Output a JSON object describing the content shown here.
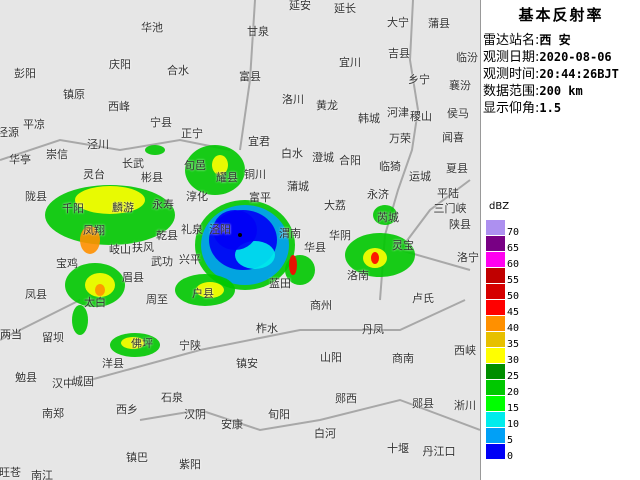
{
  "product_title": "基本反射率",
  "info": [
    {
      "label": "雷达站名:",
      "value": "西 安"
    },
    {
      "label": "观测日期:",
      "value": "2020-08-06"
    },
    {
      "label": "观测时间:",
      "value": "20:44:26BJT"
    },
    {
      "label": "数据范围:",
      "value": "200 km"
    },
    {
      "label": "显示仰角:",
      "value": "1.5"
    }
  ],
  "legend": {
    "unit": "dBZ",
    "levels": [
      {
        "value": "70",
        "color": "#ad90f0"
      },
      {
        "value": "65",
        "color": "#780084"
      },
      {
        "value": "60",
        "color": "#ff00f0"
      },
      {
        "value": "55",
        "color": "#c00000"
      },
      {
        "value": "50",
        "color": "#d60000"
      },
      {
        "value": "45",
        "color": "#ff0000"
      },
      {
        "value": "40",
        "color": "#ff9000"
      },
      {
        "value": "35",
        "color": "#e7c000"
      },
      {
        "value": "30",
        "color": "#ffff00"
      },
      {
        "value": "25",
        "color": "#008e00"
      },
      {
        "value": "20",
        "color": "#00c800"
      },
      {
        "value": "15",
        "color": "#00ff00"
      },
      {
        "value": "10",
        "color": "#00ecec"
      },
      {
        "value": "5",
        "color": "#01a0f6"
      },
      {
        "value": "0",
        "color": "#0000f6"
      }
    ]
  },
  "places": [
    "延安",
    "延长",
    "甘泉",
    "大宁",
    "蒲县",
    "吉县",
    "临汾",
    "宜川",
    "富县",
    "乡宁",
    "襄汾",
    "洛川",
    "黄龙",
    "韩城",
    "河津",
    "稷山",
    "侯马",
    "宜君",
    "万荣",
    "闻喜",
    "白水",
    "澄城",
    "合阳",
    "临猗",
    "夏县",
    "铜川",
    "运城",
    "蒲城",
    "平陆",
    "富平",
    "永济",
    "大荔",
    "三门峡",
    "芮城",
    "陕县",
    "华阴",
    "渭南",
    "华池",
    "庆阳",
    "合水",
    "彭阳",
    "镇原",
    "西峰",
    "平凉",
    "泾源",
    "宁县",
    "正宁",
    "泾川",
    "华亭",
    "崇信",
    "陇县",
    "灵台",
    "麟游",
    "千阳",
    "长武",
    "彬县",
    "旬邑",
    "耀县",
    "永寿",
    "淳化",
    "礼泉",
    "泾阳",
    "乾县",
    "凤翔",
    "岐山",
    "扶风",
    "宝鸡",
    "武功",
    "兴平",
    "凤县",
    "太白",
    "眉县",
    "周至",
    "户县",
    "两当",
    "留坝",
    "佛坪",
    "宁陕",
    "洋县",
    "勉县",
    "汉中",
    "城固",
    "石泉",
    "南郑",
    "西乡",
    "汉阴",
    "安康",
    "镇巴",
    "紫阳",
    "旺苍",
    "南江",
    "华县",
    "灵宝",
    "洛宁",
    "蓝田",
    "洛南",
    "卢氏",
    "商州",
    "柞水",
    "丹凤",
    "西峡",
    "镇安",
    "山阳",
    "商南",
    "郧西",
    "郧县",
    "淅川",
    "旬阳",
    "白河",
    "十堰",
    "丹江口"
  ]
}
